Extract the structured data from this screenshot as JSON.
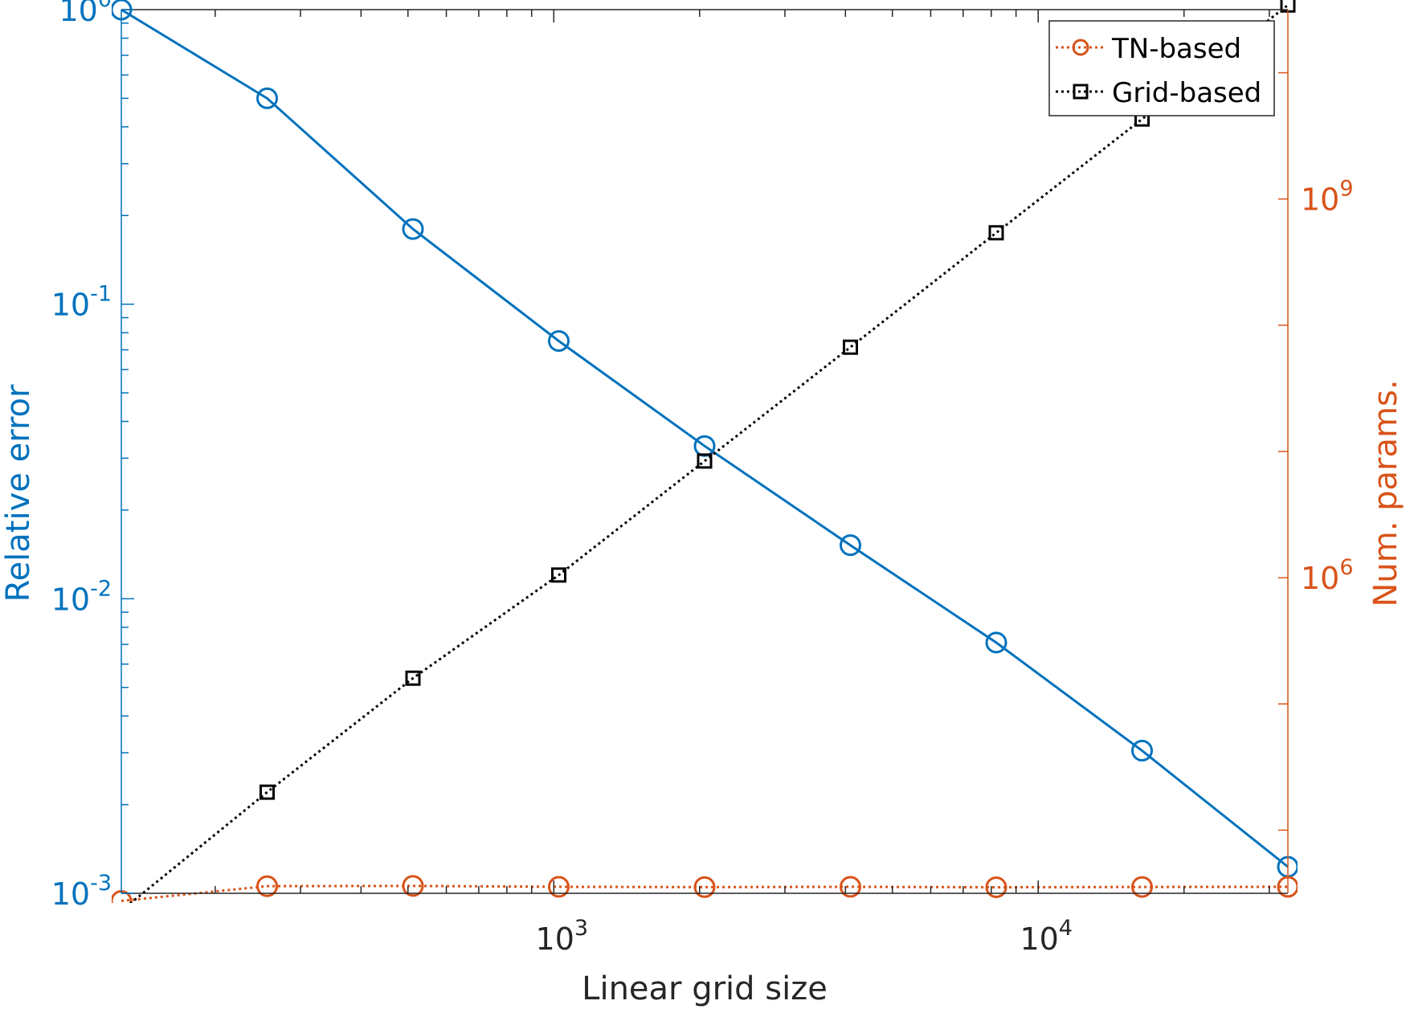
{
  "chart_data": {
    "type": "line",
    "xlabel": "Linear grid size",
    "ylabel_left": "Relative error",
    "ylabel_right": "Num. params.",
    "xscale": "log",
    "yscale_left": "log",
    "yscale_right": "log",
    "xlim": [
      128,
      32768
    ],
    "ylim_left": [
      0.001,
      1
    ],
    "ylim_right": [
      3162,
      31622776600
    ],
    "x_ticks": [
      {
        "value": 1000,
        "base": "10",
        "exp": "3"
      },
      {
        "value": 10000,
        "base": "10",
        "exp": "4"
      }
    ],
    "y_left_ticks": [
      {
        "value": 1,
        "base": "10",
        "exp": "0"
      },
      {
        "value": 0.1,
        "base": "10",
        "exp": "-1"
      },
      {
        "value": 0.01,
        "base": "10",
        "exp": "-2"
      },
      {
        "value": 0.001,
        "base": "10",
        "exp": "-3"
      }
    ],
    "y_right_ticks": [
      {
        "value": 1000000000,
        "base": "10",
        "exp": "9"
      },
      {
        "value": 1000000,
        "base": "10",
        "exp": "6"
      }
    ],
    "x": [
      128,
      256,
      512,
      1024,
      2048,
      4096,
      8192,
      16384,
      32768
    ],
    "series": [
      {
        "axis": "left",
        "style": "solid",
        "marker": "circle",
        "color": "#0072BD",
        "values": [
          1.0,
          0.5,
          0.18,
          0.075,
          0.033,
          0.0152,
          0.0071,
          0.00305,
          0.00123
        ]
      },
      {
        "name": "TN-based",
        "axis": "right",
        "style": "dotted",
        "marker": "circle",
        "color": "#D95319",
        "values": [
          2750,
          3600,
          3620,
          3560,
          3540,
          3560,
          3530,
          3550,
          3560
        ]
      },
      {
        "name": "Grid-based",
        "axis": "right",
        "style": "dotted",
        "marker": "square",
        "color": "#000000",
        "values": [
          2300,
          20000,
          160000,
          1050000,
          8400000,
          67000000,
          540000000,
          4300000000,
          34400000000
        ]
      }
    ],
    "legend": {
      "position": "top-right",
      "entries": [
        "TN-based",
        "Grid-based"
      ]
    },
    "grid": false,
    "colors": {
      "left_axis": "#0072BD",
      "right_axis": "#D95319",
      "axis": "#262626"
    }
  }
}
